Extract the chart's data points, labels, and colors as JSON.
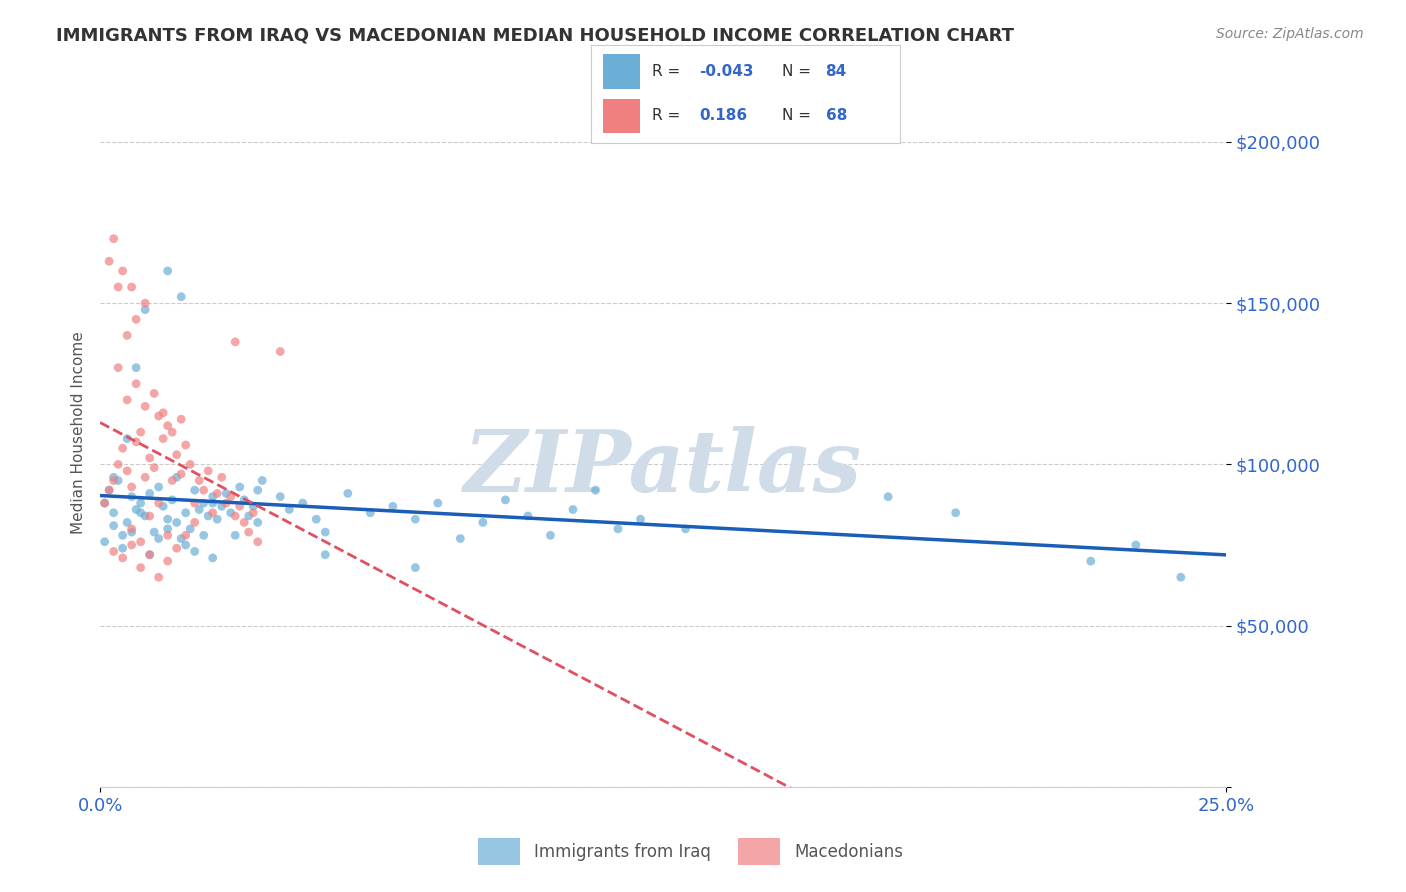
{
  "title": "IMMIGRANTS FROM IRAQ VS MACEDONIAN MEDIAN HOUSEHOLD INCOME CORRELATION CHART",
  "source_text": "Source: ZipAtlas.com",
  "xlabel": "",
  "ylabel": "Median Household Income",
  "watermark": "ZIPatlas",
  "xmin": 0.0,
  "xmax": 0.25,
  "ymin": 0,
  "ymax": 220000,
  "yticks": [
    0,
    50000,
    100000,
    150000,
    200000
  ],
  "ytick_labels": [
    "",
    "$50,000",
    "$100,000",
    "$150,000",
    "$200,000"
  ],
  "xtick_labels": [
    "0.0%",
    "25.0%"
  ],
  "legend_entries": [
    {
      "label": "R = -0.043  N = 84",
      "color": "#a8c8f0"
    },
    {
      "label": "R =  0.186  N = 68",
      "color": "#f4a0b0"
    }
  ],
  "legend_r_values": [
    "R = -0.043",
    "R =  0.186"
  ],
  "legend_n_values": [
    "N = 84",
    "N = 68"
  ],
  "series1_color": "#6baed6",
  "series2_color": "#f08080",
  "trendline1_color": "#1a5eb8",
  "trendline2_color": "#e05060",
  "background_color": "#ffffff",
  "grid_color": "#cccccc",
  "title_color": "#333333",
  "axis_label_color": "#555555",
  "tick_label_color": "#3366cc",
  "source_color": "#888888",
  "watermark_color": "#d0dce8",
  "series1_x": [
    0.001,
    0.002,
    0.003,
    0.004,
    0.005,
    0.006,
    0.007,
    0.008,
    0.009,
    0.01,
    0.011,
    0.012,
    0.013,
    0.014,
    0.015,
    0.016,
    0.017,
    0.018,
    0.019,
    0.02,
    0.021,
    0.022,
    0.023,
    0.024,
    0.025,
    0.026,
    0.027,
    0.028,
    0.029,
    0.03,
    0.031,
    0.032,
    0.033,
    0.034,
    0.035,
    0.036,
    0.04,
    0.042,
    0.045,
    0.048,
    0.05,
    0.055,
    0.06,
    0.065,
    0.07,
    0.075,
    0.08,
    0.085,
    0.09,
    0.095,
    0.1,
    0.105,
    0.11,
    0.115,
    0.12,
    0.001,
    0.003,
    0.005,
    0.007,
    0.009,
    0.011,
    0.013,
    0.015,
    0.017,
    0.019,
    0.021,
    0.023,
    0.025,
    0.003,
    0.006,
    0.008,
    0.01,
    0.015,
    0.018,
    0.025,
    0.035,
    0.05,
    0.07,
    0.13,
    0.175,
    0.22,
    0.23,
    0.19,
    0.24
  ],
  "series1_y": [
    88000,
    92000,
    85000,
    95000,
    78000,
    82000,
    90000,
    86000,
    88000,
    84000,
    91000,
    79000,
    93000,
    87000,
    83000,
    89000,
    96000,
    77000,
    85000,
    80000,
    92000,
    86000,
    88000,
    84000,
    90000,
    83000,
    87000,
    91000,
    85000,
    78000,
    93000,
    89000,
    84000,
    87000,
    82000,
    95000,
    90000,
    86000,
    88000,
    83000,
    79000,
    91000,
    85000,
    87000,
    83000,
    88000,
    77000,
    82000,
    89000,
    84000,
    78000,
    86000,
    92000,
    80000,
    83000,
    76000,
    81000,
    74000,
    79000,
    85000,
    72000,
    77000,
    80000,
    82000,
    75000,
    73000,
    78000,
    71000,
    96000,
    108000,
    130000,
    148000,
    160000,
    152000,
    88000,
    92000,
    72000,
    68000,
    80000,
    90000,
    70000,
    75000,
    85000,
    65000
  ],
  "series2_x": [
    0.001,
    0.002,
    0.003,
    0.004,
    0.005,
    0.006,
    0.007,
    0.008,
    0.009,
    0.01,
    0.011,
    0.012,
    0.013,
    0.014,
    0.015,
    0.016,
    0.017,
    0.018,
    0.019,
    0.02,
    0.021,
    0.022,
    0.023,
    0.024,
    0.025,
    0.026,
    0.027,
    0.028,
    0.029,
    0.03,
    0.031,
    0.032,
    0.033,
    0.034,
    0.035,
    0.004,
    0.006,
    0.008,
    0.01,
    0.012,
    0.014,
    0.016,
    0.018,
    0.003,
    0.005,
    0.007,
    0.009,
    0.011,
    0.013,
    0.015,
    0.017,
    0.019,
    0.021,
    0.002,
    0.004,
    0.006,
    0.008,
    0.01,
    0.03,
    0.04,
    0.007,
    0.009,
    0.011,
    0.013,
    0.015,
    0.003,
    0.005,
    0.007
  ],
  "series2_y": [
    88000,
    92000,
    95000,
    100000,
    105000,
    98000,
    93000,
    107000,
    110000,
    96000,
    102000,
    99000,
    115000,
    108000,
    112000,
    95000,
    103000,
    97000,
    106000,
    100000,
    88000,
    95000,
    92000,
    98000,
    85000,
    91000,
    96000,
    88000,
    90000,
    84000,
    87000,
    82000,
    79000,
    85000,
    76000,
    130000,
    120000,
    125000,
    118000,
    122000,
    116000,
    110000,
    114000,
    73000,
    71000,
    75000,
    68000,
    72000,
    65000,
    70000,
    74000,
    78000,
    82000,
    163000,
    155000,
    140000,
    145000,
    150000,
    138000,
    135000,
    80000,
    76000,
    84000,
    88000,
    78000,
    170000,
    160000,
    155000
  ]
}
